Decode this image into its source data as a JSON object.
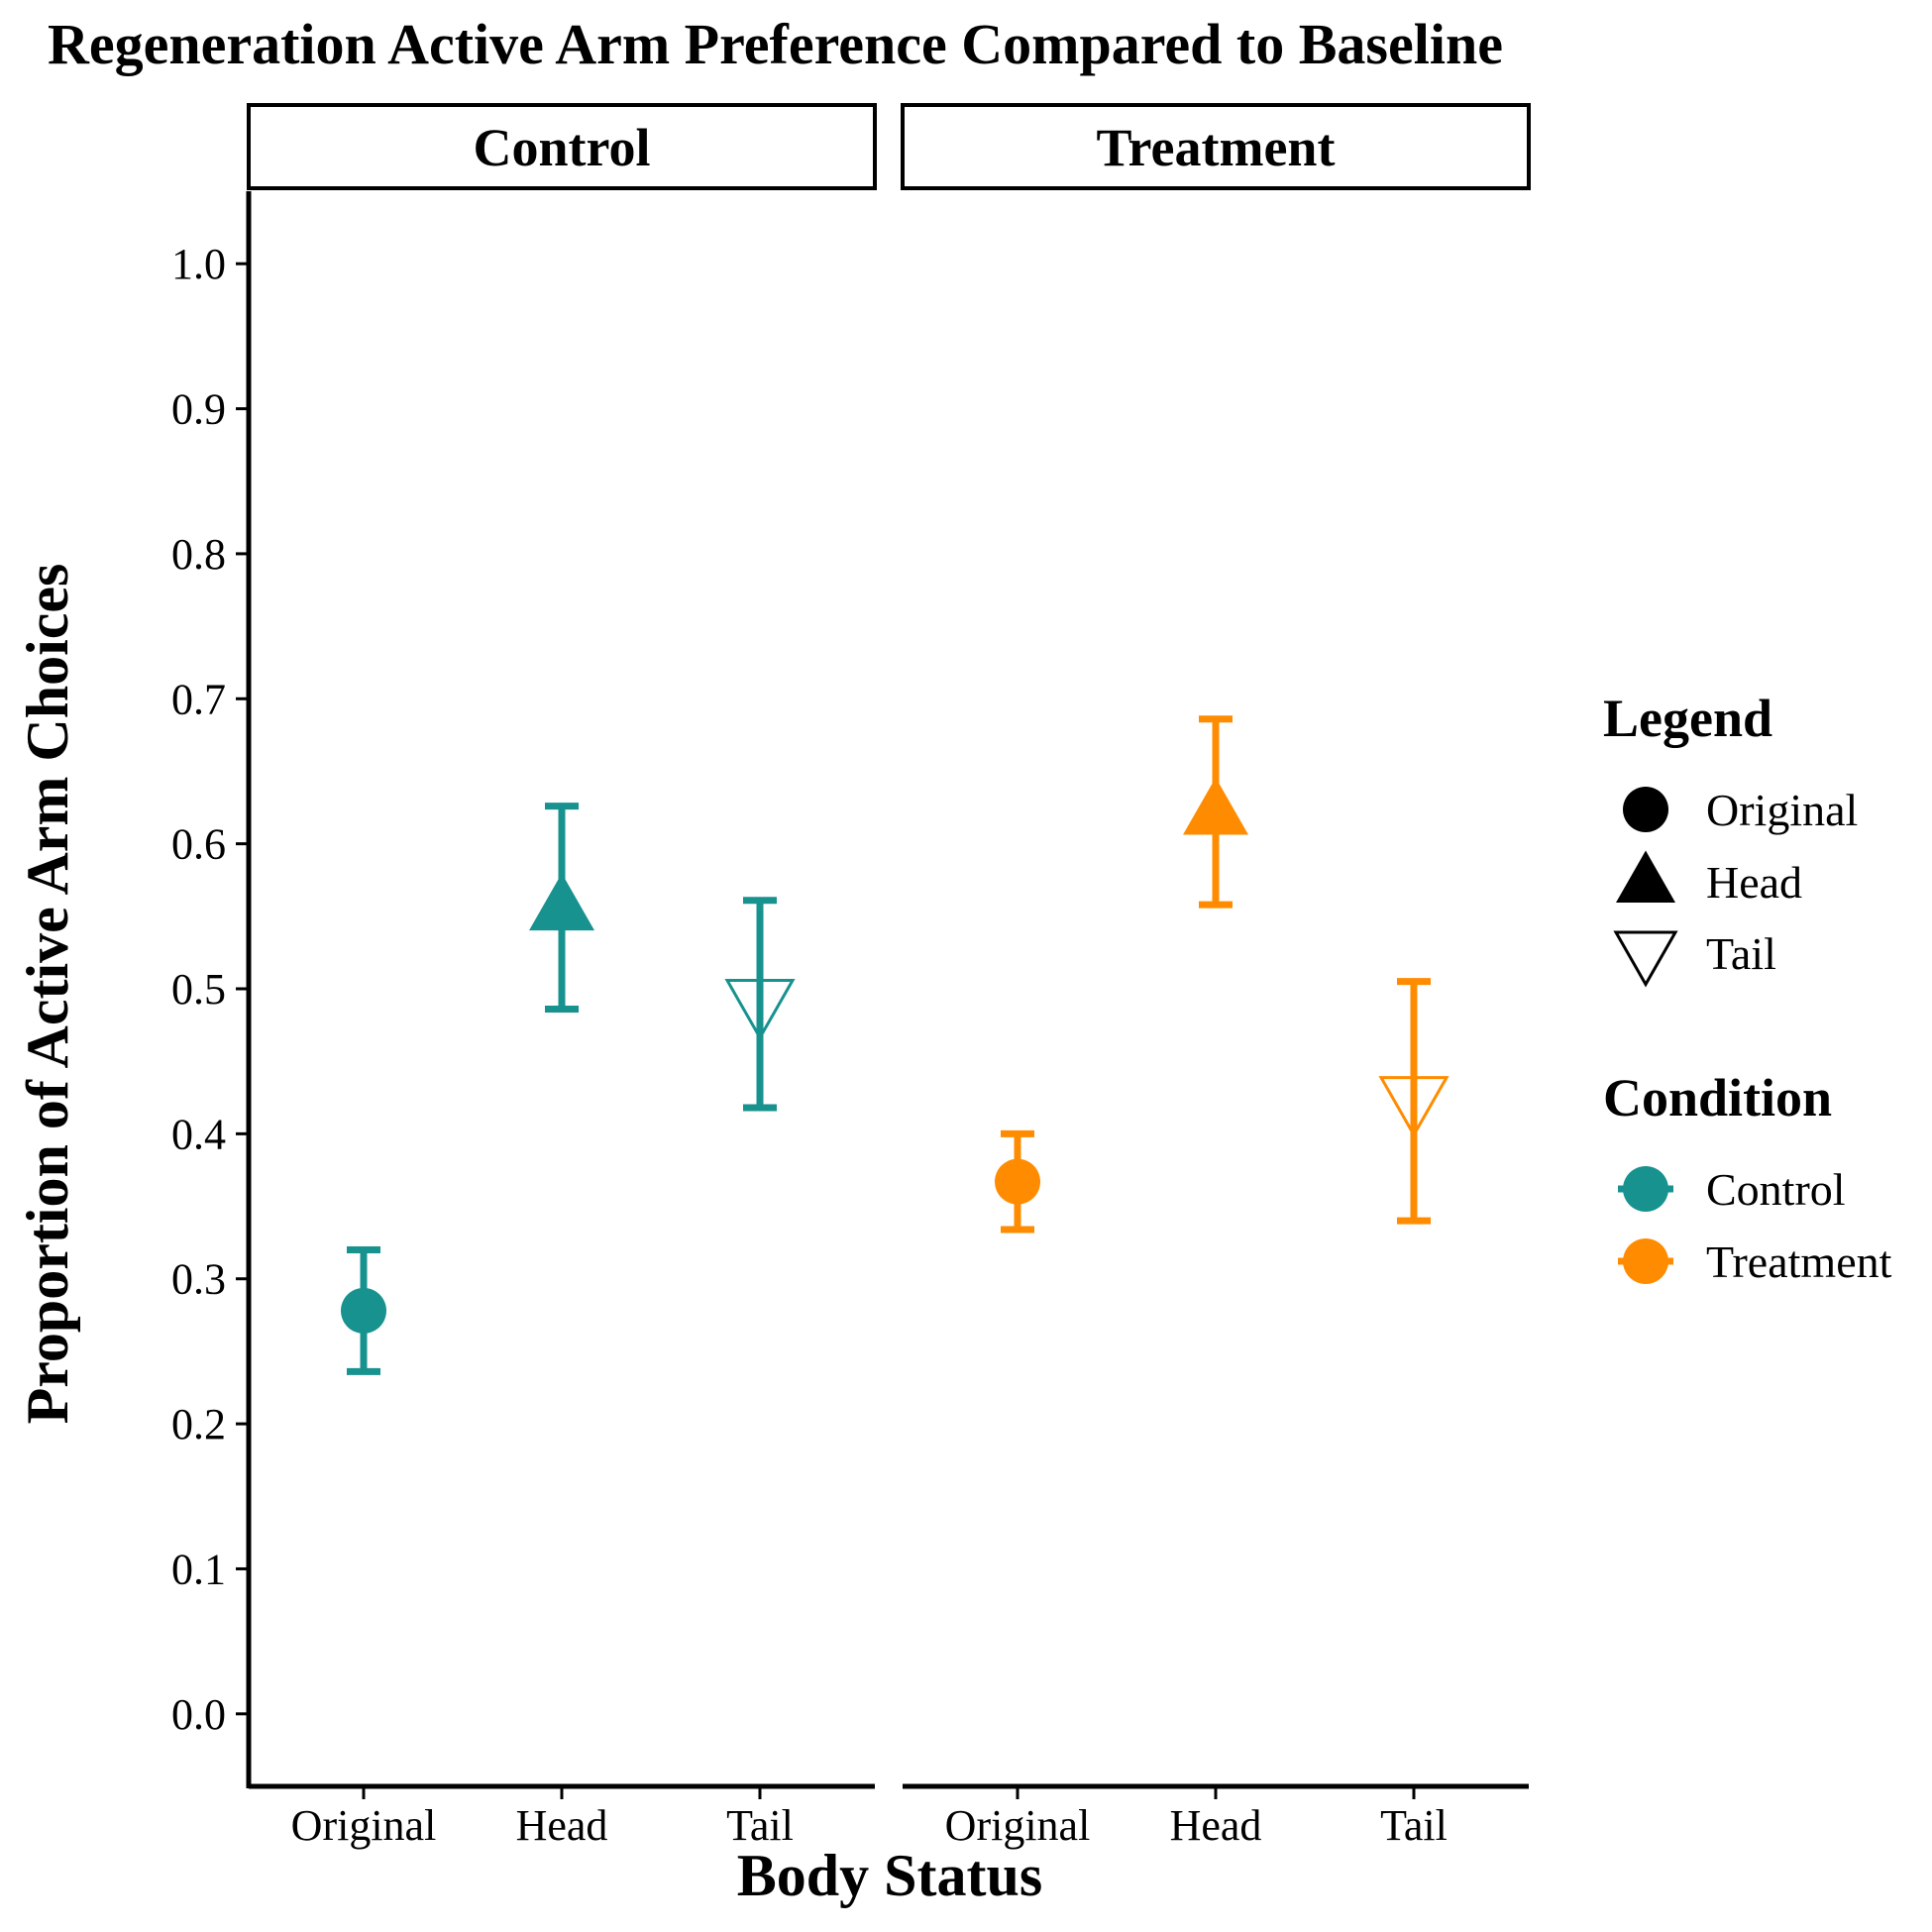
{
  "chart_data": {
    "type": "scatter",
    "title": "Regeneration Active Arm Preference Compared to Baseline",
    "xlabel": "Body Status",
    "ylabel": "Proportion of Active Arm Choices",
    "ylim": [
      -0.05,
      1.05
    ],
    "y_ticks": [
      "0.0",
      "0.1",
      "0.2",
      "0.3",
      "0.4",
      "0.5",
      "0.6",
      "0.7",
      "0.8",
      "0.9",
      "1.0"
    ],
    "categories": [
      "Original",
      "Head",
      "Tail"
    ],
    "facets": [
      "Control",
      "Treatment"
    ],
    "grid": false,
    "legend_position": "right",
    "series": [
      {
        "name": "Control",
        "color": "#17928e",
        "points": [
          {
            "x": "Original",
            "y": 0.278,
            "lower": 0.236,
            "upper": 0.32,
            "shape": "circle"
          },
          {
            "x": "Head",
            "y": 0.556,
            "lower": 0.486,
            "upper": 0.626,
            "shape": "triangle"
          },
          {
            "x": "Tail",
            "y": 0.49,
            "lower": 0.418,
            "upper": 0.561,
            "shape": "triangle-down-open"
          }
        ]
      },
      {
        "name": "Treatment",
        "color": "#ff8c00",
        "points": [
          {
            "x": "Original",
            "y": 0.367,
            "lower": 0.334,
            "upper": 0.4,
            "shape": "circle"
          },
          {
            "x": "Head",
            "y": 0.622,
            "lower": 0.558,
            "upper": 0.686,
            "shape": "triangle"
          },
          {
            "x": "Tail",
            "y": 0.423,
            "lower": 0.34,
            "upper": 0.505,
            "shape": "triangle-down-open"
          }
        ]
      }
    ],
    "legend": {
      "shape_title": "Legend",
      "shape_items": [
        {
          "label": "Original",
          "shape": "circle"
        },
        {
          "label": "Head",
          "shape": "triangle"
        },
        {
          "label": "Tail",
          "shape": "triangle-down-open"
        }
      ],
      "color_title": "Condition",
      "color_items": [
        {
          "label": "Control",
          "color": "#17928e"
        },
        {
          "label": "Treatment",
          "color": "#ff8c00"
        }
      ]
    }
  }
}
